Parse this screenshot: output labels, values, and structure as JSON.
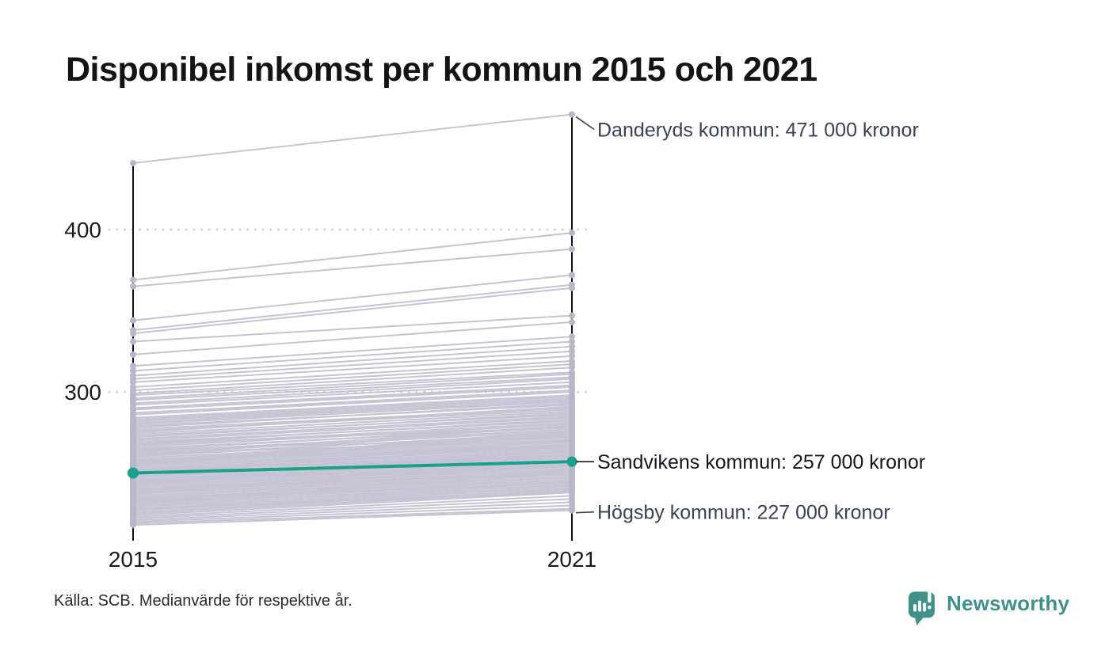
{
  "title": "Disponibel inkomst per kommun 2015 och 2021",
  "source": "Källa: SCB. Medianvärde för respektive år.",
  "logo": {
    "text": "Newsworthy",
    "icon": "speech-bubble-bar-chart-icon"
  },
  "colors": {
    "background_line": "#c6c3d3",
    "background_marker": "#bab6ca",
    "highlight": "#1aa08b",
    "annotation_text": "#3d4156",
    "annotation_emphasis": "#17181d",
    "axis": "#111111",
    "axis_label": "#1a1a1a",
    "grid": "#d2d2d2",
    "brand": "#3f918a"
  },
  "chart_data": {
    "type": "line",
    "subtype": "slope",
    "title": "Disponibel inkomst per kommun 2015 och 2021",
    "xlabel": "",
    "ylabel": "",
    "x_categories": [
      "2015",
      "2021"
    ],
    "y_ticks": [
      {
        "label": "400",
        "value": 400
      },
      {
        "label": "300",
        "value": 300
      }
    ],
    "ylim": [
      214,
      480
    ],
    "grid": "dotted-horizontal",
    "unit_note": "tusen kronor (annoteringar i kronor)",
    "highlight": {
      "name": "Sandvikens kommun",
      "values": [
        250,
        257
      ]
    },
    "annotations": [
      {
        "id": "danderyd",
        "text": "Danderyds kommun: 471 000 kronor",
        "value": 471,
        "dy": 19,
        "emphasis": false
      },
      {
        "id": "sandviken",
        "text": "Sandvikens kommun: 257 000 kronor",
        "value": 257,
        "dy": 0,
        "emphasis": true
      },
      {
        "id": "hogsby",
        "text": "Högsby kommun: 227 000 kronor",
        "value": 227,
        "dy": 2,
        "emphasis": false
      }
    ],
    "background_series": [
      [
        441,
        471
      ],
      [
        369,
        398
      ],
      [
        365,
        388
      ],
      [
        344,
        372
      ],
      [
        338,
        366
      ],
      [
        336,
        364
      ],
      [
        331,
        347
      ],
      [
        323,
        343
      ],
      [
        316,
        334
      ],
      [
        313,
        331
      ],
      [
        310,
        328
      ],
      [
        308,
        325
      ],
      [
        306,
        322
      ],
      [
        303,
        319
      ],
      [
        301,
        317
      ],
      [
        299,
        315
      ],
      [
        298,
        312
      ],
      [
        296,
        311
      ],
      [
        295,
        309
      ],
      [
        293,
        308
      ],
      [
        292,
        306
      ],
      [
        290,
        304
      ],
      [
        289,
        303
      ],
      [
        287,
        301
      ],
      [
        286,
        300
      ],
      [
        284,
        298
      ],
      [
        283,
        297
      ],
      [
        282,
        296
      ],
      [
        281,
        295
      ],
      [
        280,
        294
      ],
      [
        279,
        292
      ],
      [
        278,
        293
      ],
      [
        277,
        290
      ],
      [
        276,
        289
      ],
      [
        275,
        291
      ],
      [
        274,
        288
      ],
      [
        273,
        286
      ],
      [
        272,
        287
      ],
      [
        271,
        285
      ],
      [
        270,
        284
      ],
      [
        269,
        282
      ],
      [
        268,
        283
      ],
      [
        267,
        281
      ],
      [
        266,
        280
      ],
      [
        265,
        278
      ],
      [
        264,
        279
      ],
      [
        263,
        277
      ],
      [
        262,
        276
      ],
      [
        261,
        274
      ],
      [
        260,
        275
      ],
      [
        259,
        273
      ],
      [
        258,
        272
      ],
      [
        257,
        271
      ],
      [
        256,
        270
      ],
      [
        255,
        269
      ],
      [
        254,
        268
      ],
      [
        253,
        267
      ],
      [
        252,
        266
      ],
      [
        251,
        265
      ],
      [
        250,
        264
      ],
      [
        249,
        263
      ],
      [
        248,
        262
      ],
      [
        247,
        261
      ],
      [
        246,
        260
      ],
      [
        245,
        259
      ],
      [
        244,
        258
      ],
      [
        243,
        257
      ],
      [
        242,
        256
      ],
      [
        241,
        255
      ],
      [
        240,
        254
      ],
      [
        239,
        253
      ],
      [
        238,
        252
      ],
      [
        237,
        251
      ],
      [
        236,
        250
      ],
      [
        235,
        249
      ],
      [
        234,
        248
      ],
      [
        233,
        247
      ],
      [
        232,
        246
      ],
      [
        231,
        245
      ],
      [
        230,
        244
      ],
      [
        229,
        243
      ],
      [
        228,
        242
      ],
      [
        227,
        241
      ],
      [
        226,
        240
      ],
      [
        225,
        239
      ],
      [
        224,
        238
      ],
      [
        223,
        236
      ],
      [
        222,
        234
      ],
      [
        268,
        278
      ],
      [
        264,
        272
      ],
      [
        261,
        279
      ],
      [
        258,
        266
      ],
      [
        255,
        274
      ],
      [
        252,
        260
      ],
      [
        249,
        268
      ],
      [
        246,
        254
      ],
      [
        243,
        262
      ],
      [
        240,
        250
      ],
      [
        237,
        256
      ],
      [
        234,
        244
      ],
      [
        231,
        250
      ],
      [
        228,
        238
      ],
      [
        250,
        270
      ],
      [
        256,
        276
      ],
      [
        262,
        270
      ],
      [
        244,
        264
      ],
      [
        238,
        258
      ],
      [
        232,
        252
      ],
      [
        221,
        232
      ],
      [
        220,
        230
      ],
      [
        219,
        228
      ],
      [
        218,
        227
      ]
    ]
  }
}
